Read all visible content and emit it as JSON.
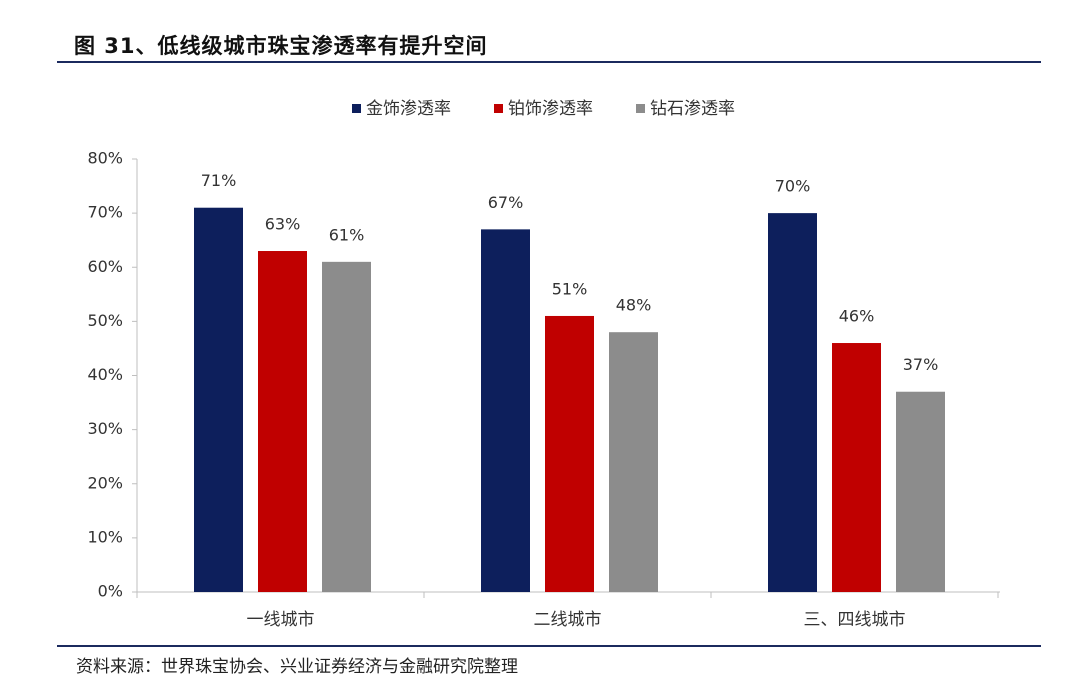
{
  "figure": {
    "title": "图 31、低线级城市珠宝渗透率有提升空间",
    "source": "资料来源：世界珠宝协会、兴业证券经济与金融研究院整理"
  },
  "chart_data": {
    "type": "bar",
    "categories": [
      "一线城市",
      "二线城市",
      "三、四线城市"
    ],
    "series": [
      {
        "name": "金饰渗透率",
        "values": [
          71,
          67,
          70
        ],
        "labels": [
          "71%",
          "67%",
          "70%"
        ],
        "color": "#0d1f5c"
      },
      {
        "name": "铂饰渗透率",
        "values": [
          63,
          51,
          46
        ],
        "labels": [
          "63%",
          "51%",
          "46%"
        ],
        "color": "#c00000"
      },
      {
        "name": "钻石渗透率",
        "values": [
          61,
          48,
          37
        ],
        "labels": [
          "61%",
          "48%",
          "37%"
        ],
        "color": "#8c8c8c"
      }
    ],
    "ylim": [
      0,
      80
    ],
    "yticks": [
      0,
      10,
      20,
      30,
      40,
      50,
      60,
      70,
      80
    ],
    "ytick_labels": [
      "0%",
      "10%",
      "20%",
      "30%",
      "40%",
      "50%",
      "60%",
      "70%",
      "80%"
    ],
    "grid": false,
    "legend_position": "top-center"
  }
}
